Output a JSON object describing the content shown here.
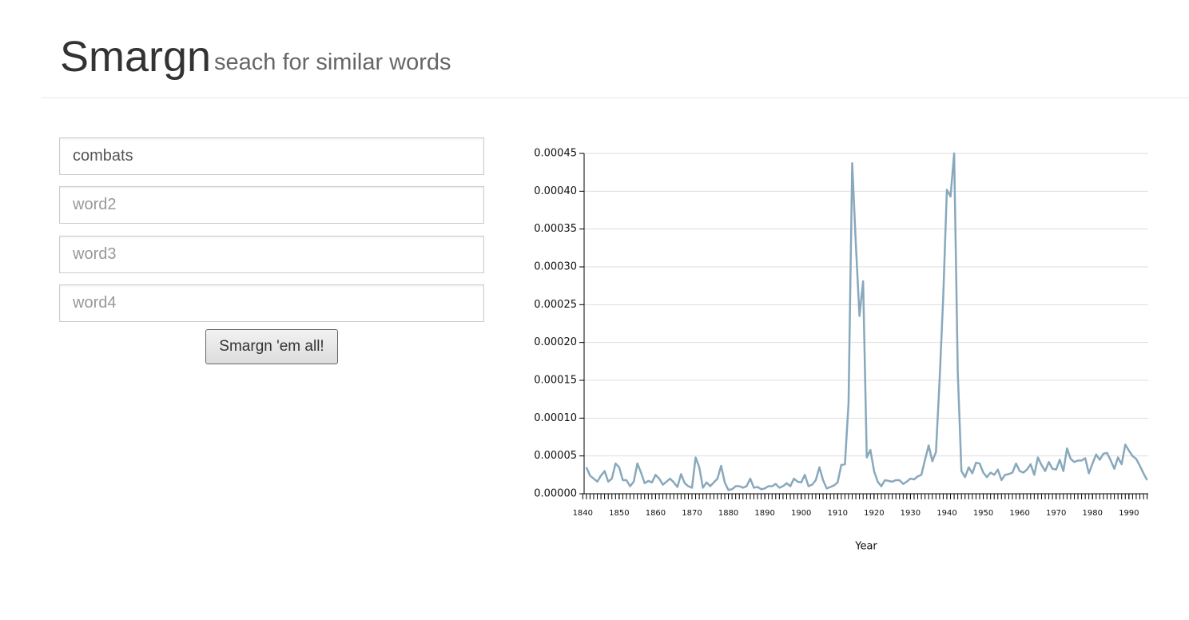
{
  "header": {
    "title": "Smargn",
    "subtitle": "seach for similar words"
  },
  "form": {
    "inputs": [
      "combats",
      "word2",
      "word3",
      "word4"
    ],
    "button": "Smargn 'em all!"
  },
  "chart_data": {
    "type": "line",
    "x_label": "Year",
    "x": [
      1841,
      1842,
      1843,
      1844,
      1845,
      1846,
      1847,
      1848,
      1849,
      1850,
      1851,
      1852,
      1853,
      1854,
      1855,
      1856,
      1857,
      1858,
      1859,
      1860,
      1861,
      1862,
      1863,
      1864,
      1865,
      1866,
      1867,
      1868,
      1869,
      1870,
      1871,
      1872,
      1873,
      1874,
      1875,
      1876,
      1877,
      1878,
      1879,
      1880,
      1881,
      1882,
      1883,
      1884,
      1885,
      1886,
      1887,
      1888,
      1889,
      1890,
      1891,
      1892,
      1893,
      1894,
      1895,
      1896,
      1897,
      1898,
      1899,
      1900,
      1901,
      1902,
      1903,
      1904,
      1905,
      1906,
      1907,
      1908,
      1909,
      1910,
      1911,
      1912,
      1913,
      1914,
      1915,
      1916,
      1917,
      1918,
      1919,
      1920,
      1921,
      1922,
      1923,
      1924,
      1925,
      1926,
      1927,
      1928,
      1929,
      1930,
      1931,
      1932,
      1933,
      1934,
      1935,
      1936,
      1937,
      1938,
      1939,
      1940,
      1941,
      1942,
      1943,
      1944,
      1945,
      1946,
      1947,
      1948,
      1949,
      1950,
      1951,
      1952,
      1953,
      1954,
      1955,
      1956,
      1957,
      1958,
      1959,
      1960,
      1961,
      1962,
      1963,
      1964,
      1965,
      1966,
      1967,
      1968,
      1969,
      1970,
      1971,
      1972,
      1973,
      1974,
      1975,
      1976,
      1977,
      1978,
      1979,
      1980,
      1981,
      1982,
      1983,
      1984,
      1985,
      1986,
      1987,
      1988,
      1989,
      1990,
      1991,
      1992,
      1993,
      1994,
      1995
    ],
    "series": [
      {
        "color": "#88a8bc",
        "values": [
          3.5e-05,
          2.4e-05,
          2e-05,
          1.6e-05,
          2.4e-05,
          3e-05,
          1.6e-05,
          2e-05,
          4e-05,
          3.5e-05,
          1.8e-05,
          1.8e-05,
          1e-05,
          1.6e-05,
          4e-05,
          2.8e-05,
          1.4e-05,
          1.7e-05,
          1.5e-05,
          2.5e-05,
          2e-05,
          1.2e-05,
          1.6e-05,
          2e-05,
          1.5e-05,
          9e-06,
          2.6e-05,
          1.4e-05,
          1e-05,
          8e-06,
          4.8e-05,
          3.5e-05,
          8e-06,
          1.5e-05,
          1e-05,
          1.5e-05,
          2e-05,
          3.7e-05,
          1.5e-05,
          5e-06,
          6e-06,
          1e-05,
          1e-05,
          8e-06,
          1e-05,
          2e-05,
          8e-06,
          9e-06,
          6e-06,
          7e-06,
          1e-05,
          1e-05,
          1.3e-05,
          8e-06,
          1e-05,
          1.4e-05,
          1e-05,
          2e-05,
          1.6e-05,
          1.5e-05,
          2.5e-05,
          1e-05,
          1.2e-05,
          1.8e-05,
          3.5e-05,
          1.8e-05,
          7e-06,
          9e-06,
          1.1e-05,
          1.5e-05,
          3.8e-05,
          3.9e-05,
          0.00012,
          0.000437,
          0.00033,
          0.000235,
          0.000281,
          4.8e-05,
          5.8e-05,
          3e-05,
          1.6e-05,
          1e-05,
          1.8e-05,
          1.7e-05,
          1.6e-05,
          1.8e-05,
          1.8e-05,
          1.3e-05,
          1.6e-05,
          2e-05,
          1.9e-05,
          2.3e-05,
          2.5e-05,
          4.5e-05,
          6.4e-05,
          4.3e-05,
          5.5e-05,
          0.00015,
          0.00026,
          0.000402,
          0.000393,
          0.00045,
          0.00016,
          3e-05,
          2.2e-05,
          3.5e-05,
          2.7e-05,
          4.1e-05,
          4e-05,
          2.8e-05,
          2.2e-05,
          2.8e-05,
          2.5e-05,
          3.2e-05,
          1.8e-05,
          2.5e-05,
          2.6e-05,
          2.8e-05,
          4e-05,
          3e-05,
          2.8e-05,
          3.2e-05,
          3.9e-05,
          2.5e-05,
          4.8e-05,
          3.8e-05,
          3e-05,
          4.2e-05,
          3.3e-05,
          3.2e-05,
          4.5e-05,
          3e-05,
          6e-05,
          4.6e-05,
          4.2e-05,
          4.4e-05,
          4.4e-05,
          4.7e-05,
          2.7e-05,
          4e-05,
          5.2e-05,
          4.5e-05,
          5.3e-05,
          5.4e-05,
          4.4e-05,
          3.3e-05,
          4.8e-05,
          3.9e-05,
          6.5e-05,
          5.7e-05,
          5e-05,
          4.6e-05,
          3.7e-05,
          2.7e-05,
          1.8e-05
        ]
      }
    ],
    "xlim": [
      1840,
      1995
    ],
    "xticks": [
      1840,
      1850,
      1860,
      1870,
      1880,
      1890,
      1900,
      1910,
      1920,
      1930,
      1940,
      1950,
      1960,
      1970,
      1980,
      1990
    ],
    "ylim": [
      0,
      0.00045
    ],
    "yticks": [
      {
        "value": 0,
        "label": "0.00000"
      },
      {
        "value": 5e-05,
        "label": "0.00005"
      },
      {
        "value": 0.0001,
        "label": "0.00010"
      },
      {
        "value": 0.00015,
        "label": "0.00015"
      },
      {
        "value": 0.0002,
        "label": "0.00020"
      },
      {
        "value": 0.00025,
        "label": "0.00025"
      },
      {
        "value": 0.0003,
        "label": "0.00030"
      },
      {
        "value": 0.00035,
        "label": "0.00035"
      },
      {
        "value": 0.0004,
        "label": "0.00040"
      },
      {
        "value": 0.00045,
        "label": "0.00045"
      }
    ],
    "grid": true
  }
}
